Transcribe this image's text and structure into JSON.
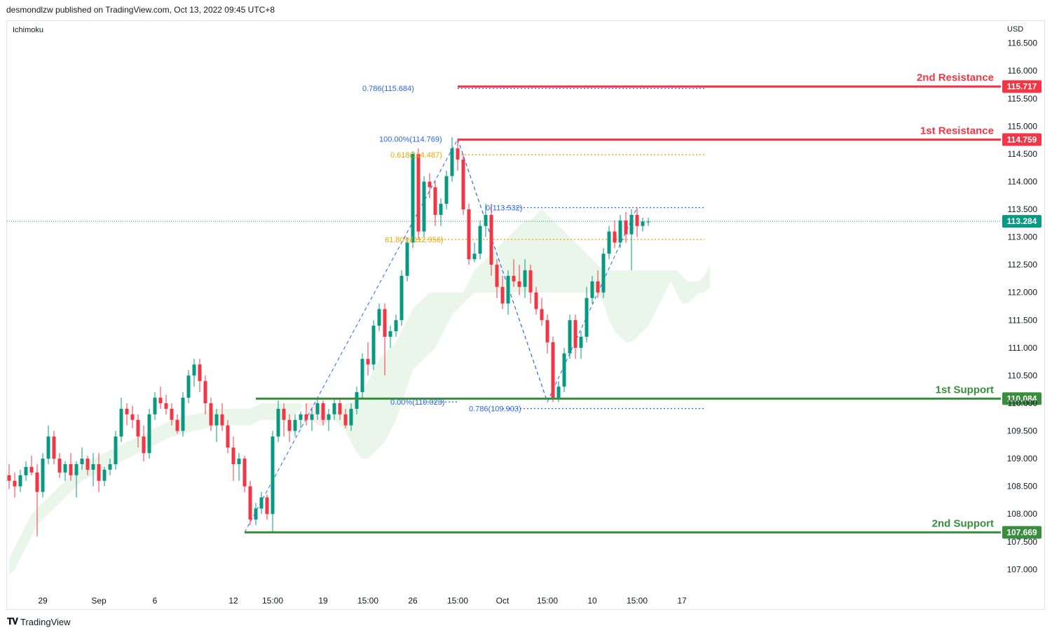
{
  "header": {
    "publisher": "desmondlzw published on TradingView.com, Oct 13, 2022 09:45 UTC+8"
  },
  "footer": {
    "brand": "TradingView",
    "logo": "tradingview-logo"
  },
  "chart_data": {
    "type": "candlestick",
    "indicator": "Ichimoku",
    "currency": "USD",
    "grid": false,
    "y_ticks": [
      116.5,
      116.0,
      115.5,
      115.0,
      114.5,
      114.0,
      113.5,
      113.0,
      112.5,
      112.0,
      111.5,
      111.0,
      110.5,
      110.0,
      109.5,
      109.0,
      108.5,
      108.0,
      107.5,
      107.0
    ],
    "x_ticks": [
      {
        "label": "29",
        "i": 6
      },
      {
        "label": "Sep",
        "i": 16
      },
      {
        "label": "6",
        "i": 26
      },
      {
        "label": "12",
        "i": 40
      },
      {
        "label": "15:00",
        "i": 47
      },
      {
        "label": "19",
        "i": 56
      },
      {
        "label": "15:00",
        "i": 64
      },
      {
        "label": "26",
        "i": 72
      },
      {
        "label": "15:00",
        "i": 80
      },
      {
        "label": "Oct",
        "i": 88
      },
      {
        "label": "15:00",
        "i": 96
      },
      {
        "label": "10",
        "i": 104
      },
      {
        "label": "15:00",
        "i": 112
      },
      {
        "label": "17",
        "i": 120
      }
    ],
    "last_index": 114,
    "ohlc": [
      [
        108.7,
        108.9,
        108.45,
        108.6
      ],
      [
        108.6,
        108.75,
        108.3,
        108.5
      ],
      [
        108.5,
        108.8,
        108.4,
        108.7
      ],
      [
        108.7,
        108.95,
        108.6,
        108.85
      ],
      [
        108.85,
        109.05,
        108.7,
        108.75
      ],
      [
        108.75,
        108.9,
        107.6,
        108.4
      ],
      [
        108.4,
        109.1,
        108.3,
        109.0
      ],
      [
        109.0,
        109.6,
        108.9,
        109.4
      ],
      [
        109.4,
        109.5,
        108.9,
        109.0
      ],
      [
        109.0,
        109.1,
        108.65,
        108.75
      ],
      [
        108.75,
        108.95,
        108.6,
        108.9
      ],
      [
        108.9,
        109.1,
        108.6,
        108.7
      ],
      [
        108.7,
        108.95,
        108.3,
        108.9
      ],
      [
        108.9,
        109.2,
        108.8,
        109.0
      ],
      [
        109.0,
        109.05,
        108.7,
        108.8
      ],
      [
        108.8,
        109.1,
        108.5,
        108.9
      ],
      [
        108.9,
        109.1,
        108.4,
        108.6
      ],
      [
        108.6,
        108.85,
        108.5,
        108.8
      ],
      [
        108.8,
        109.0,
        108.7,
        108.9
      ],
      [
        108.9,
        109.5,
        108.8,
        109.4
      ],
      [
        109.4,
        110.1,
        109.3,
        109.9
      ],
      [
        109.9,
        110.0,
        109.6,
        109.8
      ],
      [
        109.8,
        109.95,
        109.55,
        109.7
      ],
      [
        109.7,
        109.8,
        109.2,
        109.4
      ],
      [
        109.4,
        109.6,
        108.95,
        109.1
      ],
      [
        109.1,
        109.9,
        109.0,
        109.8
      ],
      [
        109.8,
        110.2,
        109.7,
        110.1
      ],
      [
        110.1,
        110.3,
        109.9,
        110.0
      ],
      [
        110.0,
        110.15,
        109.8,
        109.9
      ],
      [
        109.9,
        110.0,
        109.6,
        109.7
      ],
      [
        109.7,
        109.8,
        109.45,
        109.5
      ],
      [
        109.5,
        110.2,
        109.4,
        110.1
      ],
      [
        110.1,
        110.6,
        110.0,
        110.5
      ],
      [
        110.5,
        110.8,
        110.3,
        110.7
      ],
      [
        110.7,
        110.8,
        110.2,
        110.4
      ],
      [
        110.4,
        110.5,
        109.8,
        110.0
      ],
      [
        110.0,
        110.1,
        109.5,
        109.6
      ],
      [
        109.6,
        109.9,
        109.3,
        109.8
      ],
      [
        109.8,
        110.0,
        109.5,
        109.6
      ],
      [
        109.6,
        109.7,
        109.1,
        109.2
      ],
      [
        109.2,
        109.4,
        108.6,
        108.9
      ],
      [
        108.9,
        109.1,
        108.6,
        109.0
      ],
      [
        109.0,
        109.05,
        108.4,
        108.5
      ],
      [
        108.5,
        108.6,
        107.8,
        107.9
      ],
      [
        107.9,
        108.2,
        107.8,
        108.1
      ],
      [
        108.1,
        108.4,
        108.0,
        108.3
      ],
      [
        108.3,
        108.35,
        107.9,
        108.0
      ],
      [
        108.0,
        109.5,
        107.67,
        109.4
      ],
      [
        109.4,
        110.05,
        109.3,
        109.9
      ],
      [
        109.9,
        110.0,
        109.4,
        109.7
      ],
      [
        109.7,
        109.8,
        109.3,
        109.5
      ],
      [
        109.5,
        109.8,
        109.4,
        109.7
      ],
      [
        109.7,
        109.85,
        109.55,
        109.8
      ],
      [
        109.8,
        110.0,
        109.6,
        109.7
      ],
      [
        109.7,
        109.9,
        109.5,
        109.8
      ],
      [
        109.8,
        110.1,
        109.7,
        110.0
      ],
      [
        110.0,
        110.05,
        109.6,
        109.7
      ],
      [
        109.7,
        109.9,
        109.5,
        109.8
      ],
      [
        109.8,
        110.1,
        109.7,
        110.0
      ],
      [
        110.0,
        110.1,
        109.7,
        109.8
      ],
      [
        109.8,
        109.9,
        109.55,
        109.6
      ],
      [
        109.6,
        110.0,
        109.5,
        109.9
      ],
      [
        109.9,
        110.3,
        109.8,
        110.2
      ],
      [
        110.2,
        110.9,
        110.1,
        110.8
      ],
      [
        110.8,
        111.1,
        110.5,
        110.7
      ],
      [
        110.7,
        111.5,
        110.6,
        111.4
      ],
      [
        111.4,
        111.8,
        111.3,
        111.7
      ],
      [
        111.7,
        111.8,
        110.5,
        111.2
      ],
      [
        111.2,
        111.4,
        111.0,
        111.3
      ],
      [
        111.3,
        111.6,
        111.2,
        111.5
      ],
      [
        111.5,
        112.4,
        111.4,
        112.3
      ],
      [
        112.3,
        113.0,
        112.2,
        112.9
      ],
      [
        112.9,
        114.55,
        112.8,
        114.5
      ],
      [
        114.5,
        114.6,
        112.95,
        113.1
      ],
      [
        113.1,
        114.1,
        113.0,
        114.0
      ],
      [
        114.0,
        114.15,
        113.7,
        113.9
      ],
      [
        113.9,
        114.0,
        113.2,
        113.4
      ],
      [
        113.4,
        113.7,
        113.2,
        113.6
      ],
      [
        113.6,
        114.2,
        113.5,
        114.1
      ],
      [
        114.1,
        114.8,
        114.0,
        114.6
      ],
      [
        114.6,
        114.77,
        114.2,
        114.4
      ],
      [
        114.4,
        114.5,
        113.4,
        113.5
      ],
      [
        113.5,
        113.6,
        112.5,
        112.6
      ],
      [
        112.6,
        112.9,
        112.55,
        112.7
      ],
      [
        112.7,
        113.3,
        112.6,
        113.2
      ],
      [
        113.2,
        113.6,
        113.0,
        113.4
      ],
      [
        113.4,
        113.6,
        112.3,
        112.5
      ],
      [
        112.5,
        112.6,
        111.9,
        112.1
      ],
      [
        112.1,
        112.3,
        111.7,
        111.8
      ],
      [
        111.8,
        112.4,
        111.6,
        112.3
      ],
      [
        112.3,
        112.6,
        112.1,
        112.2
      ],
      [
        112.2,
        112.5,
        111.95,
        112.1
      ],
      [
        112.1,
        112.6,
        111.9,
        112.4
      ],
      [
        112.4,
        112.5,
        111.8,
        112.0
      ],
      [
        112.0,
        112.1,
        111.6,
        111.7
      ],
      [
        111.7,
        111.9,
        111.4,
        111.5
      ],
      [
        111.5,
        111.6,
        110.9,
        111.1
      ],
      [
        111.1,
        111.2,
        110.02,
        110.1
      ],
      [
        110.1,
        110.4,
        110.02,
        110.3
      ],
      [
        110.3,
        111.0,
        110.2,
        110.9
      ],
      [
        110.9,
        111.6,
        110.8,
        111.5
      ],
      [
        111.5,
        111.6,
        110.8,
        111.0
      ],
      [
        111.0,
        111.3,
        110.8,
        111.2
      ],
      [
        111.2,
        112.1,
        111.1,
        111.9
      ],
      [
        111.9,
        112.3,
        111.8,
        112.2
      ],
      [
        112.2,
        112.4,
        111.9,
        112.0
      ],
      [
        112.0,
        112.8,
        111.9,
        112.7
      ],
      [
        112.7,
        113.2,
        112.6,
        113.1
      ],
      [
        113.1,
        113.3,
        112.8,
        112.9
      ],
      [
        112.9,
        113.4,
        112.8,
        113.3
      ],
      [
        113.3,
        113.45,
        112.9,
        113.05
      ],
      [
        113.05,
        113.5,
        112.4,
        113.4
      ],
      [
        113.4,
        113.53,
        113.0,
        113.2
      ],
      [
        113.2,
        113.35,
        113.1,
        113.28
      ],
      [
        113.28,
        113.35,
        113.2,
        113.28
      ]
    ],
    "cloud": {
      "start_index": 0,
      "a": [
        107.2,
        107.4,
        107.6,
        107.8,
        108.0,
        108.1,
        108.2,
        108.3,
        108.4,
        108.5,
        108.6,
        108.7,
        108.8,
        108.9,
        108.95,
        109.0,
        109.05,
        109.1,
        109.15,
        109.2,
        109.25,
        109.3,
        109.35,
        109.4,
        109.45,
        109.5,
        109.55,
        109.6,
        109.65,
        109.7,
        109.72,
        109.75,
        109.78,
        109.8,
        109.82,
        109.85,
        109.87,
        109.9,
        109.9,
        109.9,
        109.9,
        109.9,
        109.9,
        109.9,
        109.95,
        110.0,
        110.0,
        110.0,
        110.0,
        110.0,
        110.0,
        110.0,
        110.0,
        109.9,
        109.7,
        109.6,
        109.6,
        109.7,
        109.8,
        109.9,
        110.0,
        110.0,
        110.1,
        110.2,
        110.4,
        110.6,
        110.8,
        110.9,
        111.0,
        111.1,
        111.3,
        111.5,
        111.7,
        111.8,
        111.9,
        112.0,
        112.0,
        112.0,
        112.0,
        112.0,
        112.0,
        112.0,
        112.2,
        112.4,
        112.5,
        112.6,
        112.7,
        112.8,
        112.9,
        113.0,
        113.1,
        113.2,
        113.3,
        113.3,
        113.4,
        113.5,
        113.4,
        113.3,
        113.2,
        113.1,
        113.0,
        112.9,
        112.8,
        112.7,
        112.6,
        112.5,
        112.4,
        112.4,
        112.4,
        112.4,
        112.4,
        112.4,
        112.4,
        112.4,
        112.4,
        112.4,
        112.4,
        112.4,
        112.4,
        112.4,
        112.3,
        112.2,
        112.2,
        112.2,
        112.3,
        112.5
      ],
      "b": [
        106.9,
        107.0,
        107.2,
        107.4,
        107.6,
        107.8,
        107.9,
        108.0,
        108.1,
        108.2,
        108.3,
        108.4,
        108.5,
        108.6,
        108.65,
        108.7,
        108.75,
        108.8,
        108.85,
        108.9,
        108.95,
        109.0,
        109.05,
        109.1,
        109.15,
        109.2,
        109.25,
        109.3,
        109.35,
        109.4,
        109.42,
        109.45,
        109.48,
        109.5,
        109.52,
        109.55,
        109.57,
        109.6,
        109.6,
        109.6,
        109.6,
        109.6,
        109.6,
        109.6,
        109.65,
        109.7,
        109.7,
        109.7,
        109.7,
        109.7,
        109.7,
        109.8,
        109.9,
        110.0,
        110.0,
        110.0,
        109.9,
        109.8,
        109.7,
        109.6,
        109.5,
        109.3,
        109.1,
        109.0,
        109.0,
        109.1,
        109.2,
        109.3,
        109.5,
        109.7,
        110.0,
        110.3,
        110.6,
        110.7,
        110.8,
        110.9,
        111.0,
        111.2,
        111.4,
        111.6,
        111.7,
        111.8,
        111.9,
        112.0,
        112.0,
        112.0,
        112.0,
        112.0,
        112.0,
        112.0,
        112.0,
        112.0,
        112.0,
        112.0,
        112.0,
        112.0,
        112.0,
        112.0,
        112.0,
        112.0,
        112.0,
        112.0,
        112.0,
        112.0,
        112.0,
        112.0,
        111.8,
        111.5,
        111.3,
        111.2,
        111.1,
        111.1,
        111.2,
        111.3,
        111.4,
        111.6,
        111.8,
        112.0,
        112.2,
        112.0,
        111.8,
        111.8,
        111.9,
        112.0,
        112.0,
        112.1
      ]
    },
    "levels": [
      {
        "label": "2nd Resistance",
        "price": "115.717",
        "value": 115.717,
        "color": "#f23645",
        "from_i": 80,
        "style": "solid"
      },
      {
        "label": "1st Resistance",
        "price": "114.759",
        "value": 114.759,
        "color": "#f23645",
        "from_i": 80,
        "style": "solid"
      },
      {
        "label": "1st Support",
        "price": "110.084",
        "value": 110.084,
        "color": "#388e3c",
        "from_i": 44,
        "style": "solid"
      },
      {
        "label": "2nd Support",
        "price": "107.669",
        "value": 107.669,
        "color": "#388e3c",
        "from_i": 42,
        "style": "solid"
      }
    ],
    "last_price": {
      "label": "113.284",
      "value": 113.284,
      "color": "#089981"
    },
    "fib_labels": [
      {
        "text": "0.786(115.684)",
        "value": 115.684,
        "i": 63,
        "color": "#2962ff",
        "line_from": 80,
        "line_to": 124,
        "style": "dotted"
      },
      {
        "text": "100.00%(114.769)",
        "value": 114.769,
        "i": 66,
        "color": "#2962ff"
      },
      {
        "text": "0.618(114.487)",
        "value": 114.487,
        "i": 68,
        "color": "#f0a500",
        "line_from": 80,
        "line_to": 124,
        "style": "dotted"
      },
      {
        "text": "0(113.532)",
        "value": 113.532,
        "i": 85,
        "color": "#2962ff",
        "line_from": 88,
        "line_to": 124,
        "style": "dotted"
      },
      {
        "text": "61.80%(112.956)",
        "value": 112.956,
        "i": 67,
        "color": "#f0a500",
        "line_from": 72,
        "line_to": 124,
        "style": "dotted"
      },
      {
        "text": "0.00%(110.023)",
        "value": 110.023,
        "i": 68,
        "color": "#2962ff",
        "line_from": 74,
        "line_to": 80,
        "style": "dotted"
      },
      {
        "text": "0.786(109.903)",
        "value": 109.903,
        "i": 82,
        "color": "#2962ff",
        "line_from": 88,
        "line_to": 124,
        "style": "dotted"
      }
    ],
    "trend_lines": [
      {
        "from": [
          42,
          107.669
        ],
        "to": [
          80,
          114.769
        ]
      },
      {
        "from": [
          80,
          114.769
        ],
        "to": [
          96,
          110.023
        ]
      },
      {
        "from": [
          80,
          114.769
        ],
        "to": [
          96,
          110.023
        ]
      },
      {
        "from": [
          96,
          110.023
        ],
        "to": [
          112,
          113.532
        ]
      }
    ]
  }
}
